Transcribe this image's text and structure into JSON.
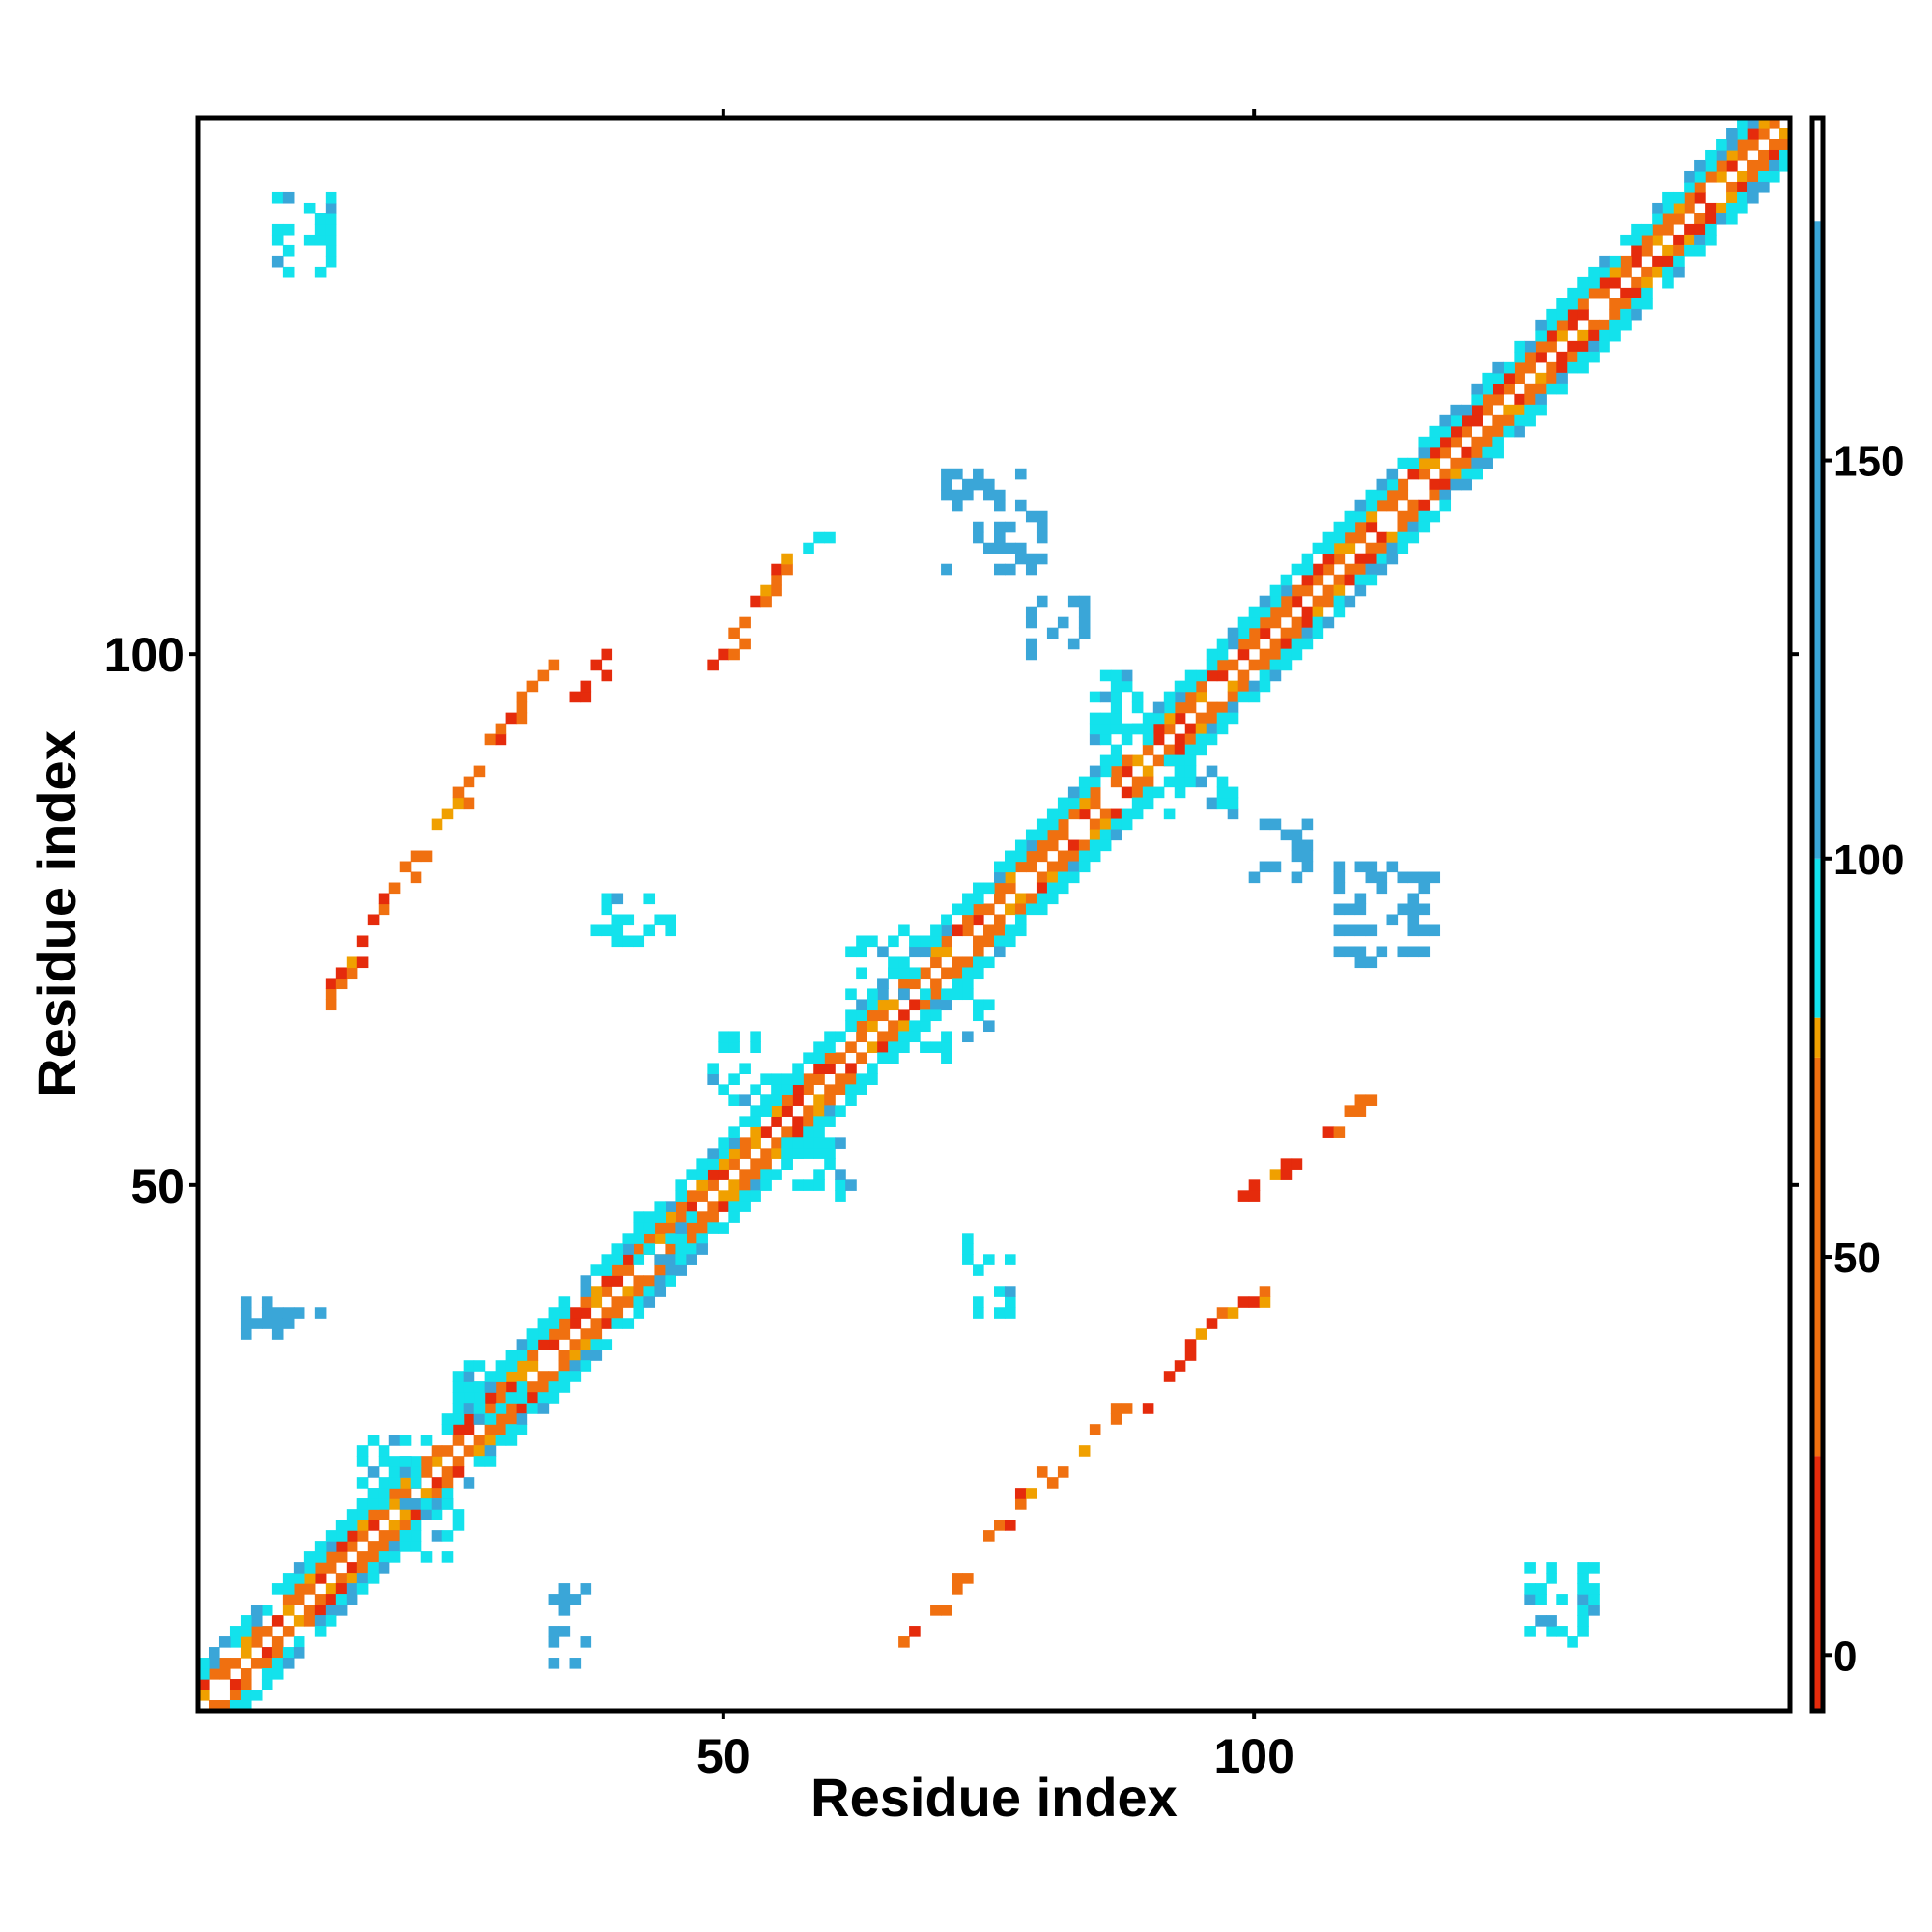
{
  "chart_data": {
    "type": "heatmap",
    "title": "",
    "xlabel": "Residue index",
    "ylabel": "Residue index",
    "xlim": [
      1,
      150
    ],
    "ylim": [
      1,
      150
    ],
    "x_ticks": [
      50,
      100
    ],
    "y_ticks": [
      50,
      100
    ],
    "colorbar": {
      "range": [
        -7,
        193
      ],
      "ticks": [
        0,
        50,
        100,
        150
      ],
      "bins": [
        {
          "from": -7,
          "to": 25,
          "color": "#e52b0c"
        },
        {
          "from": 25,
          "to": 75,
          "color": "#f07010"
        },
        {
          "from": 75,
          "to": 80,
          "color": "#f0a000"
        },
        {
          "from": 80,
          "to": 100,
          "color": "#13e2ec"
        },
        {
          "from": 100,
          "to": 180,
          "color": "#3aa6d8"
        },
        {
          "from": 180,
          "to": 193,
          "color": "#ffffff"
        }
      ]
    },
    "diagonal_bands": [
      {
        "offset": 1,
        "value": 62
      },
      {
        "offset": 2,
        "value": 58
      },
      {
        "offset": 3,
        "value": 92
      },
      {
        "offset": 4,
        "value": 95
      }
    ],
    "segments": [
      {
        "x0": 12,
        "y0": 67,
        "x1": 16,
        "y1": 73,
        "value": 60
      },
      {
        "x0": 17,
        "y0": 75,
        "x1": 21,
        "y1": 81,
        "value": 60
      },
      {
        "x0": 22,
        "y0": 83,
        "x1": 27,
        "y1": 89,
        "value": 60
      },
      {
        "x0": 28,
        "y0": 92,
        "x1": 34,
        "y1": 99,
        "value": 55
      },
      {
        "x0": 36,
        "y0": 96,
        "x1": 39,
        "y1": 100,
        "value": 20
      },
      {
        "x0": 49,
        "y0": 99,
        "x1": 52,
        "y1": 103,
        "value": 30
      },
      {
        "x0": 53,
        "y0": 105,
        "x1": 56,
        "y1": 109,
        "value": 60
      },
      {
        "x0": 57,
        "y0": 110,
        "x1": 61,
        "y1": 111,
        "value": 95
      },
      {
        "x0": 67,
        "y0": 7,
        "x1": 72,
        "y1": 13,
        "value": 60
      },
      {
        "x0": 75,
        "y0": 17,
        "x1": 80,
        "y1": 23,
        "value": 60
      },
      {
        "x0": 81,
        "y0": 22,
        "x1": 87,
        "y1": 29,
        "value": 55
      },
      {
        "x0": 90,
        "y0": 29,
        "x1": 95,
        "y1": 36,
        "value": 20
      },
      {
        "x0": 96,
        "y0": 37,
        "x1": 101,
        "y1": 40,
        "value": 40
      },
      {
        "x0": 99,
        "y0": 49,
        "x1": 103,
        "y1": 52,
        "value": 20
      },
      {
        "x0": 106,
        "y0": 54,
        "x1": 110,
        "y1": 58,
        "value": 60
      }
    ],
    "patches": [
      {
        "x": 8,
        "y": 136,
        "w": 6,
        "h": 8,
        "value": 92
      },
      {
        "x": 126,
        "y": 7,
        "w": 7,
        "h": 8,
        "value": 92
      },
      {
        "x": 71,
        "y": 108,
        "w": 10,
        "h": 10,
        "value": 120
      },
      {
        "x": 108,
        "y": 71,
        "w": 10,
        "h": 10,
        "value": 120
      },
      {
        "x": 38,
        "y": 73,
        "w": 8,
        "h": 5,
        "value": 92
      },
      {
        "x": 73,
        "y": 38,
        "w": 5,
        "h": 8,
        "value": 92
      },
      {
        "x": 5,
        "y": 36,
        "w": 8,
        "h": 4,
        "value": 120
      },
      {
        "x": 34,
        "y": 5,
        "w": 4,
        "h": 8,
        "value": 120
      },
      {
        "x": 49,
        "y": 58,
        "w": 7,
        "h": 7,
        "value": 92
      },
      {
        "x": 56,
        "y": 48,
        "w": 7,
        "h": 7,
        "value": 92
      },
      {
        "x": 62,
        "y": 68,
        "w": 7,
        "h": 7,
        "value": 92
      },
      {
        "x": 69,
        "y": 62,
        "w": 7,
        "h": 7,
        "value": 92
      },
      {
        "x": 85,
        "y": 92,
        "w": 6,
        "h": 7,
        "value": 95
      },
      {
        "x": 92,
        "y": 85,
        "w": 7,
        "h": 6,
        "value": 95
      },
      {
        "x": 79,
        "y": 100,
        "w": 6,
        "h": 6,
        "value": 120
      },
      {
        "x": 100,
        "y": 79,
        "w": 6,
        "h": 6,
        "value": 120
      },
      {
        "x": 25,
        "y": 28,
        "w": 7,
        "h": 6,
        "value": 92
      },
      {
        "x": 42,
        "y": 43,
        "w": 6,
        "h": 5,
        "value": 92
      },
      {
        "x": 16,
        "y": 20,
        "w": 6,
        "h": 7,
        "value": 92
      },
      {
        "x": 20,
        "y": 15,
        "w": 6,
        "h": 6,
        "value": 92
      }
    ]
  }
}
